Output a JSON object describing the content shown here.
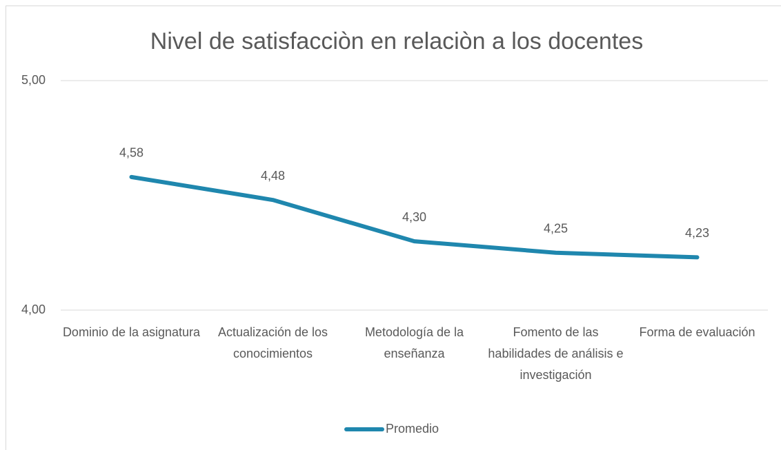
{
  "chart_data": {
    "type": "line",
    "title": "Nivel de satisfacciòn en relaciòn a los docentes",
    "categories": [
      "Dominio de la asignatura",
      "Actualización de los conocimientos",
      "Metodología de la enseñanza",
      "Fomento de las habilidades de análisis e investigación",
      "Forma de evaluación"
    ],
    "series": [
      {
        "name": "Promedio",
        "color": "#1f87ae",
        "values": [
          4.58,
          4.48,
          4.3,
          4.25,
          4.23
        ],
        "value_labels": [
          "4,58",
          "4,48",
          "4,30",
          "4,25",
          "4,23"
        ]
      }
    ],
    "ylim": [
      4,
      5
    ],
    "yticks": [
      {
        "value": 4,
        "label": "4,00"
      },
      {
        "value": 5,
        "label": "5,00"
      }
    ],
    "grid": true,
    "legend": "bottom"
  }
}
